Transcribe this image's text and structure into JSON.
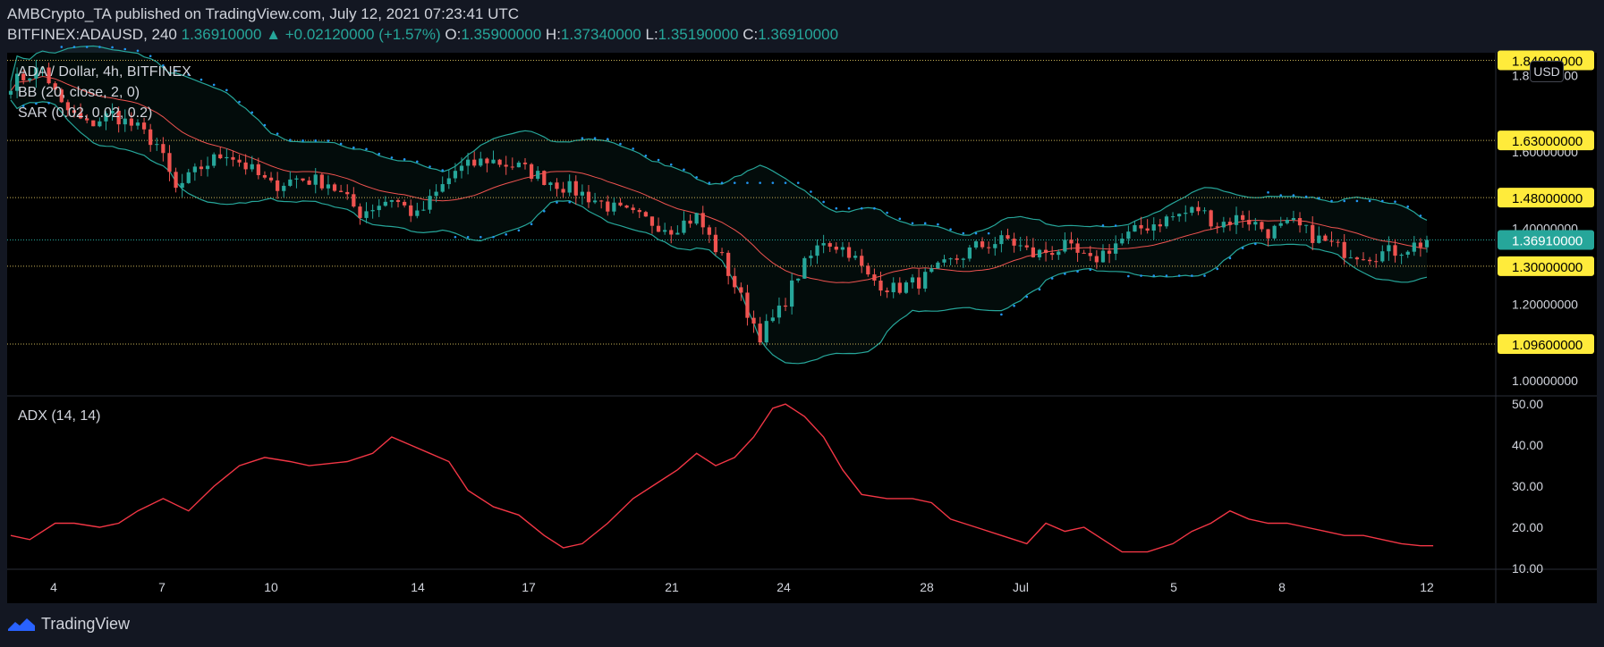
{
  "header": {
    "publisher_line": "AMBCrypto_TA published on TradingView.com, July 12, 2021 07:23:41 UTC",
    "symbol": "BITFINEX:ADAUSD, 240",
    "last": "1.36910000",
    "arrow": "▲",
    "change": "+0.02120000 (+1.57%)",
    "o_label": "O:",
    "o_value": "1.35900000",
    "h_label": "H:",
    "h_value": "1.37340000",
    "l_label": "L:",
    "l_value": "1.35190000",
    "c_label": "C:",
    "c_value": "1.36910000"
  },
  "legend": {
    "title": "ADA / Dollar, 4h, BITFINEX",
    "bb": "BB (20, close, 2, 0)",
    "sar": "SAR (0.02, 0.02, 0.2)",
    "adx": "ADX (14, 14)"
  },
  "currency_button": "USD",
  "footer": {
    "brand": "TradingView"
  },
  "colors": {
    "background": "#000000",
    "frame": "#131722",
    "up": "#26a69a",
    "down": "#ef5350",
    "bb_band": "#26a69a",
    "bb_basis": "#ef5350",
    "sar": "#2196f3",
    "adx": "#f23645",
    "level_label": "#ffeb3b",
    "last_label": "#26a69a"
  },
  "chart_data": [
    {
      "type": "candlestick",
      "title": "ADA / Dollar, 4h, BITFINEX",
      "ylim": [
        0.96,
        1.86
      ],
      "y_ticks": [
        "1.00000000",
        "1.20000000",
        "1.40000000",
        "1.60000000",
        "1.80000000"
      ],
      "x_ticks": [
        "4",
        "7",
        "10",
        "14",
        "17",
        "21",
        "24",
        "28",
        "Jul",
        "5",
        "8",
        "12"
      ],
      "level_lines": [
        "1.84000000",
        "1.63000000",
        "1.48000000",
        "1.30000000",
        "1.09600000"
      ],
      "last_price_label": "1.36910000",
      "price_path": [
        [
          0,
          1.78
        ],
        [
          5,
          1.82
        ],
        [
          8,
          1.72
        ],
        [
          12,
          1.67
        ],
        [
          16,
          1.7
        ],
        [
          20,
          1.66
        ],
        [
          23,
          1.62
        ],
        [
          26,
          1.5
        ],
        [
          30,
          1.56
        ],
        [
          34,
          1.6
        ],
        [
          38,
          1.55
        ],
        [
          41,
          1.51
        ],
        [
          45,
          1.53
        ],
        [
          50,
          1.52
        ],
        [
          55,
          1.44
        ],
        [
          60,
          1.48
        ],
        [
          64,
          1.43
        ],
        [
          70,
          1.55
        ],
        [
          75,
          1.58
        ],
        [
          80,
          1.56
        ],
        [
          84,
          1.53
        ],
        [
          90,
          1.49
        ],
        [
          95,
          1.45
        ],
        [
          100,
          1.42
        ],
        [
          104,
          1.4
        ],
        [
          108,
          1.43
        ],
        [
          112,
          1.32
        ],
        [
          116,
          1.18
        ],
        [
          118,
          1.12
        ],
        [
          121,
          1.18
        ],
        [
          124,
          1.28
        ],
        [
          128,
          1.37
        ],
        [
          132,
          1.34
        ],
        [
          135,
          1.27
        ],
        [
          139,
          1.24
        ],
        [
          143,
          1.26
        ],
        [
          147,
          1.3
        ],
        [
          152,
          1.35
        ],
        [
          157,
          1.37
        ],
        [
          161,
          1.33
        ],
        [
          166,
          1.35
        ],
        [
          170,
          1.31
        ],
        [
          174,
          1.36
        ],
        [
          178,
          1.4
        ],
        [
          183,
          1.43
        ],
        [
          187,
          1.45
        ],
        [
          190,
          1.41
        ],
        [
          194,
          1.43
        ],
        [
          198,
          1.39
        ],
        [
          202,
          1.41
        ],
        [
          206,
          1.37
        ],
        [
          210,
          1.34
        ],
        [
          214,
          1.33
        ],
        [
          218,
          1.34
        ],
        [
          222,
          1.36
        ],
        [
          224,
          1.369
        ]
      ],
      "candles_count": 224
    },
    {
      "type": "line",
      "title": "ADX (14, 14)",
      "ylim": [
        10,
        52
      ],
      "y_ticks": [
        "10.00",
        "20.00",
        "30.00",
        "40.00",
        "50.00"
      ],
      "values": [
        [
          0,
          18
        ],
        [
          3,
          17
        ],
        [
          7,
          21
        ],
        [
          10,
          21
        ],
        [
          14,
          20
        ],
        [
          17,
          21
        ],
        [
          20,
          24
        ],
        [
          24,
          27
        ],
        [
          28,
          24
        ],
        [
          32,
          30
        ],
        [
          36,
          35
        ],
        [
          40,
          37
        ],
        [
          44,
          36
        ],
        [
          47,
          35
        ],
        [
          50,
          35.5
        ],
        [
          53,
          36
        ],
        [
          57,
          38
        ],
        [
          60,
          42
        ],
        [
          63,
          40
        ],
        [
          66,
          38
        ],
        [
          69,
          36
        ],
        [
          72,
          29
        ],
        [
          76,
          25
        ],
        [
          80,
          23
        ],
        [
          84,
          18
        ],
        [
          87,
          15
        ],
        [
          90,
          16
        ],
        [
          94,
          21
        ],
        [
          98,
          27
        ],
        [
          102,
          31
        ],
        [
          105,
          34
        ],
        [
          108,
          38
        ],
        [
          111,
          35
        ],
        [
          114,
          37
        ],
        [
          117,
          42
        ],
        [
          120,
          49
        ],
        [
          122,
          50
        ],
        [
          125,
          47
        ],
        [
          128,
          42
        ],
        [
          131,
          34
        ],
        [
          134,
          28
        ],
        [
          138,
          27
        ],
        [
          142,
          27
        ],
        [
          145,
          26
        ],
        [
          148,
          22
        ],
        [
          152,
          20
        ],
        [
          156,
          18
        ],
        [
          160,
          16
        ],
        [
          163,
          21
        ],
        [
          166,
          19
        ],
        [
          169,
          20
        ],
        [
          172,
          17
        ],
        [
          175,
          14
        ],
        [
          179,
          14
        ],
        [
          183,
          16
        ],
        [
          186,
          19
        ],
        [
          189,
          21
        ],
        [
          192,
          24
        ],
        [
          195,
          22
        ],
        [
          198,
          21
        ],
        [
          201,
          21
        ],
        [
          204,
          20
        ],
        [
          207,
          19
        ],
        [
          210,
          18
        ],
        [
          213,
          18
        ],
        [
          216,
          17
        ],
        [
          219,
          16
        ],
        [
          222,
          15.5
        ],
        [
          224,
          15.5
        ]
      ]
    }
  ]
}
